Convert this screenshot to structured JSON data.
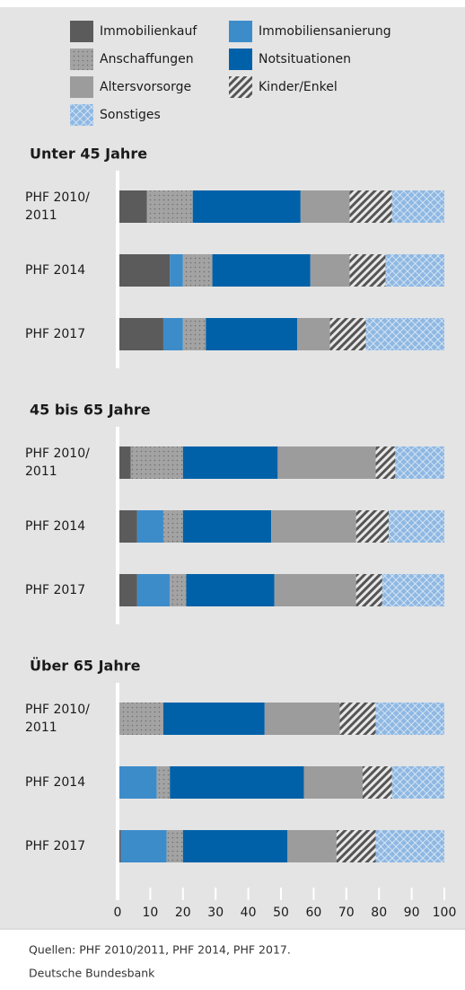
{
  "legend_series_note_source": null,
  "chart_data": [
    {
      "type": "bar",
      "orientation": "horizontal",
      "stacked": true,
      "title": "Unter 45 Jahre",
      "categories": [
        "PHF 2010/2011",
        "PHF 2014",
        "PHF 2017"
      ],
      "xlim": [
        0,
        100
      ],
      "series": [
        {
          "name": "Immobilienkauf",
          "color": "#5b5b5b",
          "pattern": "solid",
          "values": [
            9,
            16,
            14
          ]
        },
        {
          "name": "Immobiliensanierung",
          "color": "#3d8cca",
          "pattern": "solid",
          "values": [
            0,
            4,
            6
          ]
        },
        {
          "name": "Anschaffungen",
          "color": "#9c9c9c",
          "pattern": "dots",
          "values": [
            14,
            9,
            7
          ]
        },
        {
          "name": "Notsituationen",
          "color": "#0061a8",
          "pattern": "solid",
          "values": [
            33,
            30,
            28
          ]
        },
        {
          "name": "Altersvorsorge",
          "color": "#9c9c9c",
          "pattern": "solid",
          "values": [
            15,
            12,
            10
          ]
        },
        {
          "name": "Kinder/Enkel",
          "color": "#555555",
          "pattern": "stripes",
          "values": [
            13,
            11,
            11
          ]
        },
        {
          "name": "Sonstiges",
          "color": "#8fb8e2",
          "pattern": "cross",
          "values": [
            16,
            18,
            24
          ]
        }
      ]
    },
    {
      "type": "bar",
      "orientation": "horizontal",
      "stacked": true,
      "title": "45 bis 65 Jahre",
      "categories": [
        "PHF 2010/2011",
        "PHF 2014",
        "PHF 2017"
      ],
      "xlim": [
        0,
        100
      ],
      "series": [
        {
          "name": "Immobilienkauf",
          "color": "#5b5b5b",
          "pattern": "solid",
          "values": [
            4,
            6,
            6
          ]
        },
        {
          "name": "Immobiliensanierung",
          "color": "#3d8cca",
          "pattern": "solid",
          "values": [
            0,
            8,
            10
          ]
        },
        {
          "name": "Anschaffungen",
          "color": "#9c9c9c",
          "pattern": "dots",
          "values": [
            16,
            6,
            5
          ]
        },
        {
          "name": "Notsituationen",
          "color": "#0061a8",
          "pattern": "solid",
          "values": [
            29,
            27,
            27
          ]
        },
        {
          "name": "Altersvorsorge",
          "color": "#9c9c9c",
          "pattern": "solid",
          "values": [
            30,
            26,
            25
          ]
        },
        {
          "name": "Kinder/Enkel",
          "color": "#555555",
          "pattern": "stripes",
          "values": [
            6,
            10,
            8
          ]
        },
        {
          "name": "Sonstiges",
          "color": "#8fb8e2",
          "pattern": "cross",
          "values": [
            15,
            17,
            19
          ]
        }
      ]
    },
    {
      "type": "bar",
      "orientation": "horizontal",
      "stacked": true,
      "title": "Über 65 Jahre",
      "categories": [
        "PHF 2010/2011",
        "PHF 2014",
        "PHF 2017"
      ],
      "xlim": [
        0,
        100
      ],
      "xticks": [
        0,
        10,
        20,
        30,
        40,
        50,
        60,
        70,
        80,
        90,
        100
      ],
      "series": [
        {
          "name": "Immobilienkauf",
          "color": "#5b5b5b",
          "pattern": "solid",
          "values": [
            0,
            0,
            1
          ]
        },
        {
          "name": "Immobiliensanierung",
          "color": "#3d8cca",
          "pattern": "solid",
          "values": [
            0,
            12,
            14
          ]
        },
        {
          "name": "Anschaffungen",
          "color": "#9c9c9c",
          "pattern": "dots",
          "values": [
            14,
            4,
            5
          ]
        },
        {
          "name": "Notsituationen",
          "color": "#0061a8",
          "pattern": "solid",
          "values": [
            31,
            41,
            32
          ]
        },
        {
          "name": "Altersvorsorge",
          "color": "#9c9c9c",
          "pattern": "solid",
          "values": [
            23,
            18,
            15
          ]
        },
        {
          "name": "Kinder/Enkel",
          "color": "#555555",
          "pattern": "stripes",
          "values": [
            11,
            9,
            12
          ]
        },
        {
          "name": "Sonstiges",
          "color": "#8fb8e2",
          "pattern": "cross",
          "values": [
            21,
            16,
            21
          ]
        }
      ]
    }
  ],
  "notes": [
    "Quellen: PHF 2010/2011, PHF 2014, PHF 2017.",
    "Deutsche Bundesbank"
  ]
}
